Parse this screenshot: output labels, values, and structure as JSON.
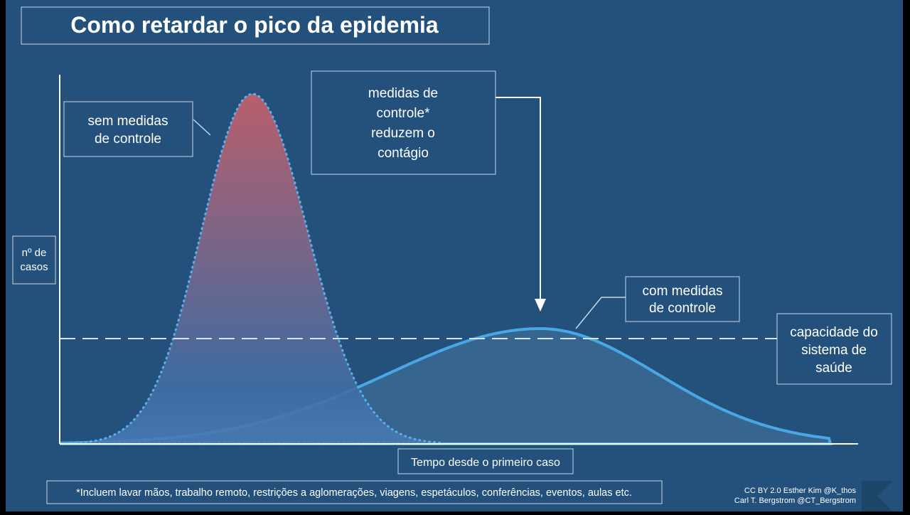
{
  "title": "Como retardar o pico da epidemia",
  "labels": {
    "no_measures": [
      "sem medidas",
      "de controle"
    ],
    "measures_note": [
      "medidas de",
      "controle*",
      "reduzem o",
      "contágio"
    ],
    "with_measures": [
      "com medidas",
      "de controle"
    ],
    "capacity": [
      "capacidade do",
      "sistema de",
      "saúde"
    ],
    "y_axis": [
      "nº de",
      "casos"
    ],
    "x_axis": "Tempo desde o primeiro caso"
  },
  "footnote": "*Incluem lavar mãos, trabalho remoto, restrições a aglomerações, viagens, espetáculos, conferências, eventos, aulas etc.",
  "credits": [
    "CC BY 2.0  Esther Kim  @K_thos",
    "Carl T. Bergstrom  @CT_Bergstrom"
  ]
}
